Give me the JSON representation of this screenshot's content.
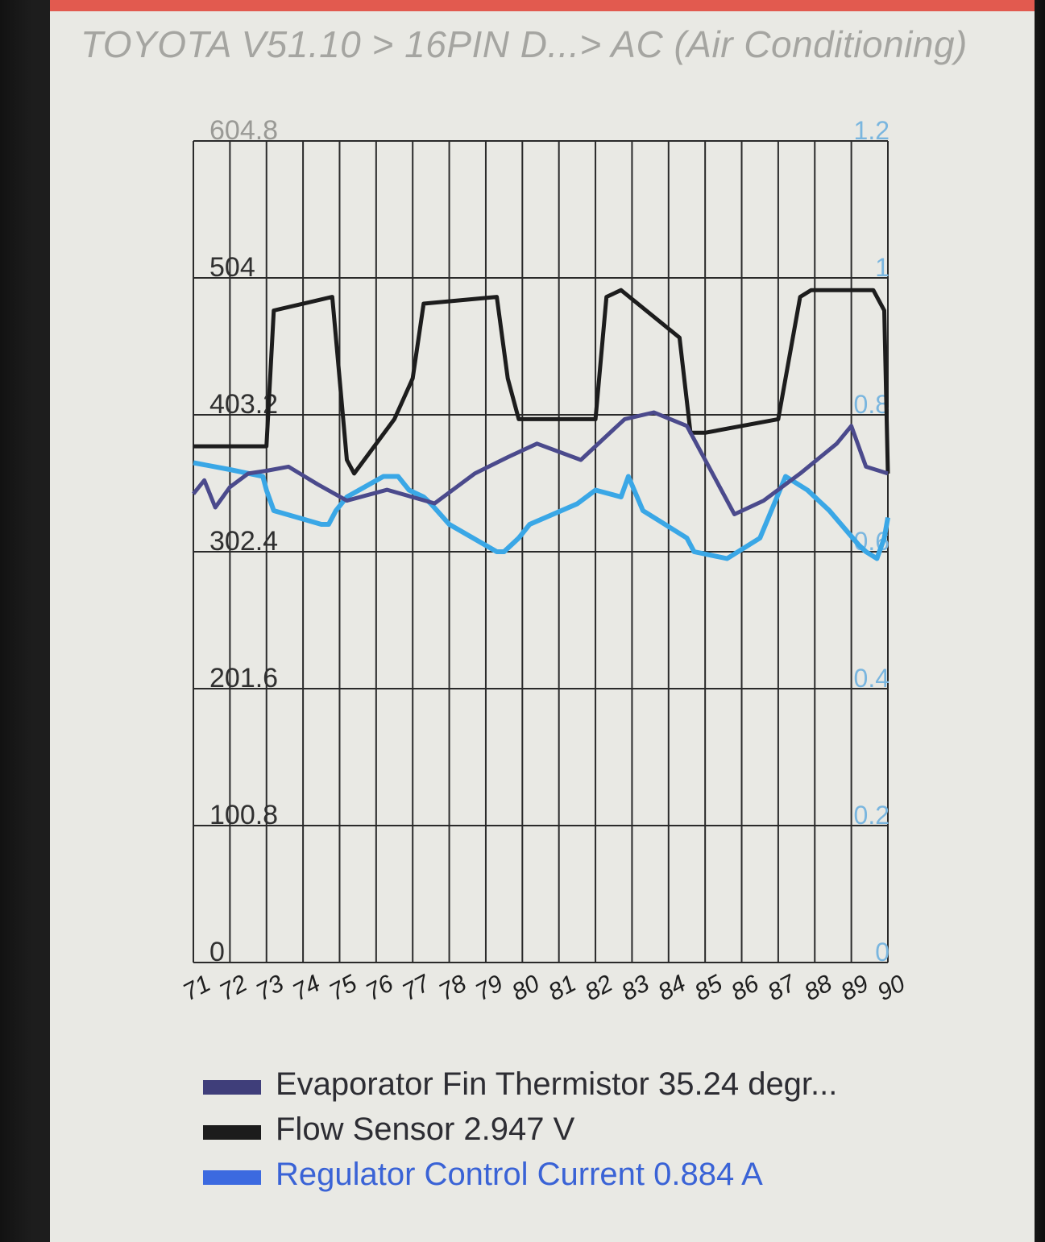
{
  "header": {
    "breadcrumb": "TOYOTA V51.10 > 16PIN D...> AC (Air Conditioning)"
  },
  "colors": {
    "accent_bar": "#e25a4f",
    "grid": "#2a2a2a",
    "series_evaporator": "#4b4a8c",
    "series_flow": "#1d1d1d",
    "series_regulator": "#3aa7e6",
    "series_regulator_legend": "#3a63d6"
  },
  "chart_data": {
    "type": "line",
    "x_ticks": [
      "71",
      "72",
      "73",
      "74",
      "75",
      "76",
      "77",
      "78",
      "79",
      "80",
      "81",
      "82",
      "83",
      "84",
      "85",
      "86",
      "87",
      "88",
      "89",
      "90"
    ],
    "x_tick_labels_visible": [
      "7",
      "1",
      "6",
      "2",
      "6",
      "3",
      "6",
      "4",
      "6",
      "5",
      "6",
      "6",
      "6",
      "7",
      "6",
      "8",
      "6",
      "9",
      "8",
      "0",
      "8",
      "1",
      "8",
      "2",
      "8",
      "3",
      "8",
      "4",
      "8",
      "5",
      "8",
      "6",
      "8",
      "7",
      "8",
      "8",
      "0"
    ],
    "left_axis": {
      "ticks": [
        "604.8",
        "504",
        "403.2",
        "302.4",
        "201.6",
        "100.8",
        "0"
      ],
      "range": [
        0,
        604.8
      ]
    },
    "right_axis": {
      "ticks": [
        "1.2",
        "1",
        "0.8",
        "0.6",
        "0.4",
        "0.2",
        "0"
      ],
      "range": [
        0,
        1.2
      ]
    },
    "grid": true,
    "series": [
      {
        "name": "Evaporator Fin Thermistor",
        "axis": "left",
        "x": [
          71.0,
          71.3,
          71.6,
          72.0,
          72.5,
          73.0,
          73.6,
          74.4,
          75.2,
          76.3,
          77.6,
          78.7,
          79.6,
          80.4,
          81.6,
          82.8,
          83.6,
          84.5,
          85.8,
          86.6,
          87.6,
          88.6,
          89.0,
          89.4,
          90.0
        ],
        "y": [
          345,
          355,
          335,
          350,
          360,
          362,
          365,
          352,
          340,
          348,
          338,
          360,
          372,
          382,
          370,
          400,
          405,
          395,
          330,
          340,
          360,
          382,
          395,
          365,
          360
        ]
      },
      {
        "name": "Flow Sensor",
        "axis": "left",
        "x": [
          71.0,
          72.0,
          72.8,
          73.0,
          73.2,
          74.8,
          75.2,
          75.4,
          76.5,
          77.0,
          77.3,
          79.3,
          79.6,
          79.9,
          82.0,
          82.3,
          82.7,
          84.3,
          84.6,
          85.0,
          87.0,
          87.6,
          87.9,
          89.6,
          89.9,
          90.0
        ],
        "y": [
          380,
          380,
          380,
          380,
          480,
          490,
          370,
          360,
          400,
          430,
          485,
          490,
          430,
          400,
          400,
          490,
          495,
          460,
          390,
          390,
          400,
          490,
          495,
          495,
          480,
          360
        ]
      },
      {
        "name": "Regulator Control Current",
        "axis": "right",
        "x": [
          71.0,
          72.0,
          72.9,
          73.0,
          73.2,
          74.5,
          74.7,
          74.9,
          75.2,
          76.2,
          76.6,
          76.9,
          77.3,
          77.5,
          78.0,
          79.3,
          79.5,
          79.9,
          80.2,
          81.5,
          82.0,
          82.7,
          82.9,
          83.3,
          84.5,
          84.7,
          85.6,
          86.5,
          87.2,
          87.8,
          88.4,
          89.2,
          89.4,
          89.7,
          89.9,
          90.0
        ],
        "y": [
          0.73,
          0.72,
          0.71,
          0.69,
          0.66,
          0.64,
          0.64,
          0.66,
          0.68,
          0.71,
          0.71,
          0.69,
          0.68,
          0.67,
          0.64,
          0.6,
          0.6,
          0.62,
          0.64,
          0.67,
          0.69,
          0.68,
          0.71,
          0.66,
          0.62,
          0.6,
          0.59,
          0.62,
          0.71,
          0.69,
          0.66,
          0.61,
          0.6,
          0.59,
          0.62,
          0.65
        ]
      }
    ]
  },
  "legend": [
    {
      "label": "Evaporator Fin Thermistor 35.24 degr...",
      "swatch": "#3f3e7a",
      "style": "dark"
    },
    {
      "label": "Flow Sensor 2.947 V",
      "swatch": "#1c1c1c",
      "style": "dark"
    },
    {
      "label": "Regulator Control Current 0.884 A",
      "swatch": "#3c6ae0",
      "style": "blue"
    }
  ]
}
